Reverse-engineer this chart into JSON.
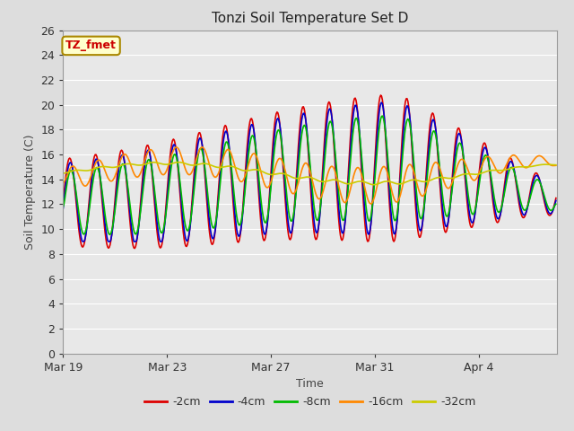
{
  "title": "Tonzi Soil Temperature Set D",
  "xlabel": "Time",
  "ylabel": "Soil Temperature (C)",
  "annotation": "TZ_fmet",
  "annotation_facecolor": "#ffffcc",
  "annotation_edgecolor": "#aa8800",
  "annotation_textcolor": "#cc0000",
  "ylim": [
    0,
    26
  ],
  "yticks": [
    0,
    2,
    4,
    6,
    8,
    10,
    12,
    14,
    16,
    18,
    20,
    22,
    24,
    26
  ],
  "xtick_labels": [
    "Mar 19",
    "Mar 23",
    "Mar 27",
    "Mar 31",
    "Apr 4"
  ],
  "fig_bg_color": "#dddddd",
  "plot_bg_color": "#e8e8e8",
  "grid_color": "#ffffff",
  "legend_entries": [
    "-2cm",
    "-4cm",
    "-8cm",
    "-16cm",
    "-32cm"
  ],
  "line_colors": [
    "#dd0000",
    "#0000cc",
    "#00bb00",
    "#ff8800",
    "#cccc00"
  ],
  "line_width": 1.2
}
